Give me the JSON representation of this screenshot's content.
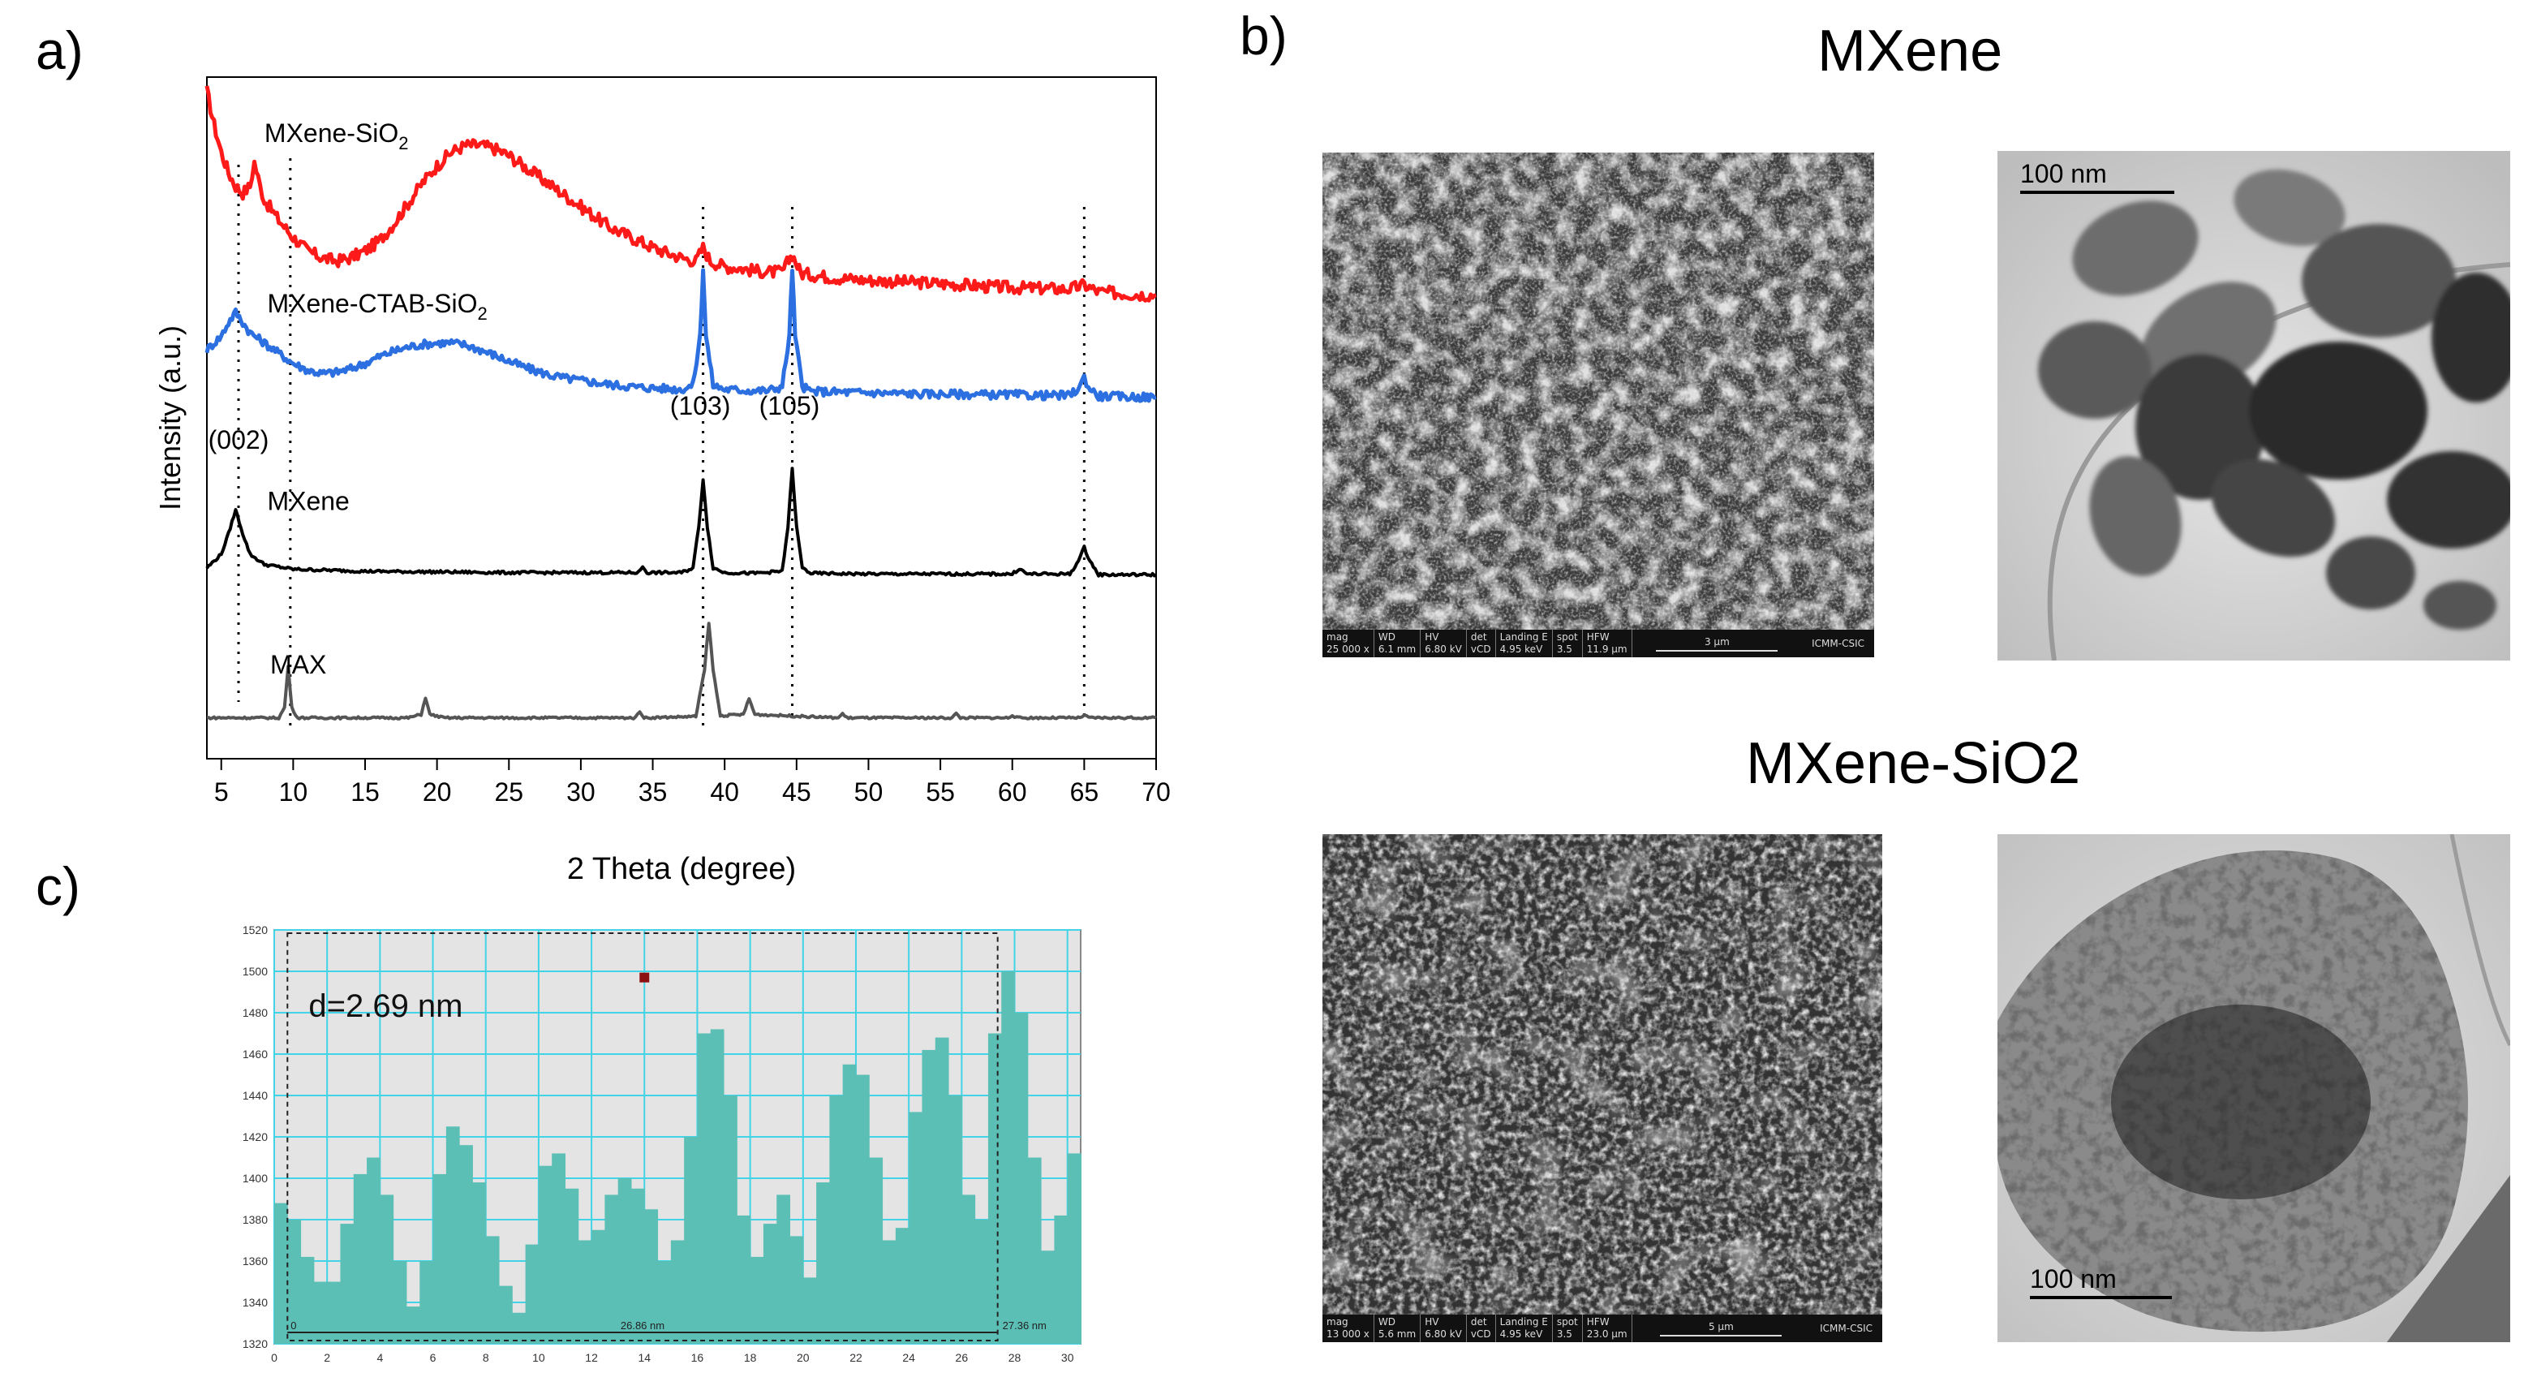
{
  "panels": {
    "a": "a)",
    "b": "b)",
    "c": "c)"
  },
  "xrd": {
    "chart_data": {
      "type": "line",
      "xlabel": "2 Theta (degree)",
      "ylabel": "Intensity (a.u.)",
      "xlim": [
        4,
        70
      ],
      "xticks": [
        5,
        10,
        15,
        20,
        25,
        30,
        35,
        40,
        45,
        50,
        55,
        60,
        65,
        70
      ],
      "series_labels": [
        {
          "base": "MXene-SiO",
          "sub": "2",
          "color": "#ff1a1a"
        },
        {
          "base": "MXene-CTAB-SiO",
          "sub": "2",
          "color": "#2b6fe0"
        },
        {
          "base": "MXene",
          "sub": "",
          "color": "#000000"
        },
        {
          "base": "MAX",
          "sub": "",
          "color": "#555555"
        }
      ],
      "peak_labels": [
        "(002)",
        "(103)",
        "(105)"
      ],
      "reference_lines_x": [
        6.2,
        9.8,
        38.5,
        44.7,
        65.0
      ],
      "series": [
        {
          "name": "MXene-SiO2",
          "color": "#ff1a1a",
          "x": [
            4,
            4.5,
            5,
            5.5,
            6,
            6.5,
            7,
            7.3,
            7.7,
            8,
            9,
            10,
            11,
            12,
            13,
            14,
            15,
            16,
            17,
            18,
            19,
            20,
            21,
            22,
            23,
            24,
            25,
            26,
            27,
            28,
            29,
            30,
            31,
            32,
            33,
            34,
            35,
            36,
            37,
            38,
            38.5,
            39,
            40,
            41,
            42,
            43,
            44,
            44.7,
            45.3,
            46,
            48,
            50,
            52,
            54,
            56,
            58,
            60,
            62,
            64,
            65,
            66,
            68,
            70
          ],
          "y": [
            0.98,
            0.93,
            0.89,
            0.86,
            0.84,
            0.83,
            0.84,
            0.875,
            0.84,
            0.82,
            0.79,
            0.765,
            0.745,
            0.735,
            0.73,
            0.735,
            0.745,
            0.76,
            0.785,
            0.815,
            0.845,
            0.87,
            0.89,
            0.9,
            0.9,
            0.895,
            0.885,
            0.87,
            0.855,
            0.84,
            0.825,
            0.81,
            0.795,
            0.78,
            0.77,
            0.76,
            0.75,
            0.742,
            0.735,
            0.73,
            0.75,
            0.73,
            0.722,
            0.72,
            0.716,
            0.714,
            0.714,
            0.74,
            0.712,
            0.71,
            0.705,
            0.702,
            0.7,
            0.698,
            0.696,
            0.693,
            0.691,
            0.69,
            0.689,
            0.695,
            0.685,
            0.682,
            0.68
          ]
        },
        {
          "name": "MXene-CTAB-SiO2",
          "color": "#2b6fe0",
          "x": [
            4,
            5,
            5.5,
            6,
            6.5,
            7,
            8,
            9,
            10,
            11,
            12,
            13,
            14,
            15,
            16,
            17,
            18,
            19,
            20,
            21,
            22,
            23,
            24,
            25,
            26,
            27,
            28,
            29,
            30,
            31,
            32,
            33,
            34,
            35,
            36,
            37,
            37.8,
            38.3,
            38.5,
            38.7,
            39.2,
            40,
            41,
            42,
            43,
            44,
            44.5,
            44.7,
            44.9,
            45.4,
            46,
            48,
            50,
            52,
            54,
            56,
            58,
            60,
            62,
            64,
            64.7,
            65,
            65.3,
            66,
            68,
            70
          ],
          "y": [
            0.6,
            0.62,
            0.64,
            0.655,
            0.64,
            0.625,
            0.61,
            0.595,
            0.58,
            0.57,
            0.565,
            0.567,
            0.572,
            0.58,
            0.59,
            0.598,
            0.604,
            0.608,
            0.61,
            0.61,
            0.607,
            0.6,
            0.592,
            0.583,
            0.575,
            0.568,
            0.562,
            0.558,
            0.555,
            0.552,
            0.549,
            0.547,
            0.545,
            0.544,
            0.543,
            0.542,
            0.548,
            0.62,
            0.72,
            0.62,
            0.548,
            0.542,
            0.541,
            0.54,
            0.54,
            0.546,
            0.62,
            0.72,
            0.62,
            0.546,
            0.539,
            0.538,
            0.537,
            0.536,
            0.535,
            0.535,
            0.534,
            0.534,
            0.533,
            0.533,
            0.545,
            0.56,
            0.545,
            0.532,
            0.531,
            0.53
          ]
        },
        {
          "name": "MXene",
          "color": "#000000",
          "x": [
            4,
            5,
            5.5,
            6,
            6.5,
            7,
            8,
            10,
            15,
            20,
            25,
            30,
            34,
            34.3,
            34.6,
            37,
            37.8,
            38.2,
            38.5,
            38.8,
            39.2,
            40,
            42,
            44,
            44.4,
            44.7,
            45,
            45.4,
            46,
            50,
            55,
            60,
            60.5,
            61,
            64,
            64.6,
            65,
            65.4,
            66,
            70
          ],
          "y": [
            0.28,
            0.3,
            0.33,
            0.365,
            0.33,
            0.3,
            0.285,
            0.278,
            0.275,
            0.274,
            0.273,
            0.273,
            0.273,
            0.282,
            0.273,
            0.273,
            0.28,
            0.34,
            0.41,
            0.34,
            0.28,
            0.273,
            0.272,
            0.275,
            0.34,
            0.425,
            0.34,
            0.28,
            0.272,
            0.271,
            0.271,
            0.271,
            0.279,
            0.271,
            0.271,
            0.29,
            0.31,
            0.29,
            0.27,
            0.27
          ]
        },
        {
          "name": "MAX",
          "color": "#555555",
          "x": [
            4,
            9,
            9.4,
            9.65,
            9.9,
            10.3,
            18,
            18.9,
            19.2,
            19.5,
            20.5,
            33.8,
            34.1,
            34.4,
            38,
            38.6,
            38.9,
            39.2,
            39.7,
            41.3,
            41.7,
            42.1,
            47.9,
            48.2,
            48.5,
            55.8,
            56.1,
            56.4,
            59.7,
            60,
            60.3,
            64.7,
            65,
            65.3,
            70
          ],
          "y": [
            0.06,
            0.06,
            0.075,
            0.135,
            0.075,
            0.06,
            0.06,
            0.065,
            0.09,
            0.065,
            0.06,
            0.06,
            0.07,
            0.06,
            0.062,
            0.13,
            0.2,
            0.13,
            0.063,
            0.065,
            0.088,
            0.065,
            0.06,
            0.066,
            0.06,
            0.06,
            0.066,
            0.06,
            0.06,
            0.064,
            0.06,
            0.06,
            0.064,
            0.06,
            0.06
          ]
        }
      ]
    }
  },
  "headings": {
    "mxene": "MXene",
    "mxene_sio2": "MXene-SiO2"
  },
  "sem": {
    "fields": [
      "mag",
      "WD",
      "HV",
      "det",
      "Landing E",
      "spot",
      "HFW"
    ],
    "top": {
      "values": [
        "25 000 x",
        "6.1 mm",
        "6.80 kV",
        "vCD",
        "4.95 keV",
        "3.5",
        "11.9 µm"
      ],
      "scale": "3 µm",
      "org": "ICMM-CSIC"
    },
    "bottom": {
      "values": [
        "13 000 x",
        "5.6 mm",
        "6.80 kV",
        "vCD",
        "4.95 keV",
        "3.5",
        "23.0 µm"
      ],
      "scale": "5 µm",
      "org": "ICMM-CSIC"
    }
  },
  "tem": {
    "top_scale": "100 nm",
    "bottom_scale": "100 nm"
  },
  "profile": {
    "chart_data": {
      "type": "area",
      "annotation": "d=2.69 nm",
      "xlim": [
        0,
        30.5
      ],
      "ylim": [
        1320,
        1520
      ],
      "yticks": [
        1320,
        1340,
        1360,
        1380,
        1400,
        1420,
        1440,
        1460,
        1480,
        1500,
        1520
      ],
      "xticks": [
        0,
        2,
        4,
        6,
        8,
        10,
        12,
        14,
        16,
        18,
        20,
        22,
        24,
        26,
        28,
        30
      ],
      "measure_start_label": "0",
      "measure_length": "26.86 nm",
      "measure_end_label": "27.36 nm",
      "measure_range": [
        0.5,
        27.36
      ],
      "marker": [
        14,
        1497
      ],
      "x": [
        0,
        0.5,
        1,
        1.5,
        2,
        2.5,
        3,
        3.5,
        4,
        4.5,
        5,
        5.5,
        6,
        6.5,
        7,
        7.5,
        8,
        8.5,
        9,
        9.5,
        10,
        10.5,
        11,
        11.5,
        12,
        12.5,
        13,
        13.5,
        14,
        14.5,
        15,
        15.5,
        16,
        16.5,
        17,
        17.5,
        18,
        18.5,
        19,
        19.5,
        20,
        20.5,
        21,
        21.5,
        22,
        22.5,
        23,
        23.5,
        24,
        24.5,
        25,
        25.5,
        26,
        26.5,
        27,
        27.5,
        28,
        28.5,
        29,
        29.5,
        30,
        30.5
      ],
      "y": [
        1388,
        1380,
        1362,
        1350,
        1350,
        1378,
        1402,
        1410,
        1392,
        1360,
        1338,
        1360,
        1402,
        1425,
        1416,
        1398,
        1372,
        1348,
        1335,
        1368,
        1406,
        1412,
        1395,
        1370,
        1375,
        1392,
        1400,
        1395,
        1385,
        1360,
        1370,
        1420,
        1470,
        1472,
        1440,
        1382,
        1362,
        1378,
        1392,
        1372,
        1352,
        1398,
        1440,
        1455,
        1450,
        1410,
        1370,
        1376,
        1432,
        1462,
        1468,
        1440,
        1392,
        1380,
        1470,
        1500,
        1480,
        1410,
        1365,
        1382,
        1412,
        1412
      ]
    }
  }
}
